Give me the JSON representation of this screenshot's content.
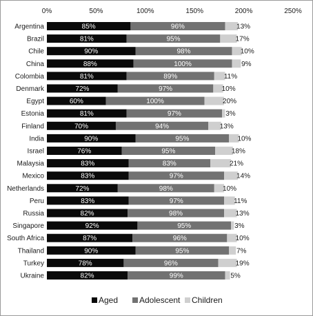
{
  "chart_data": {
    "type": "bar",
    "orientation": "horizontal",
    "stacked": true,
    "categories": [
      "Argentina",
      "Brazil",
      "Chile",
      "China",
      "Colombia",
      "Denmark",
      "Egypt",
      "Estonia",
      "Finland",
      "India",
      "Israel",
      "Malaysia",
      "Mexico",
      "Netherlands",
      "Peru",
      "Russia",
      "Singapore",
      "South Africa",
      "Thailand",
      "Turkey",
      "Ukraine"
    ],
    "series": [
      {
        "name": "Aged",
        "color": "#0a0a0a",
        "values": [
          85,
          81,
          90,
          88,
          81,
          72,
          60,
          81,
          70,
          90,
          76,
          83,
          83,
          72,
          83,
          82,
          92,
          87,
          90,
          78,
          82
        ]
      },
      {
        "name": "Adolescent",
        "color": "#727272",
        "values": [
          96,
          95,
          98,
          100,
          89,
          97,
          100,
          97,
          94,
          95,
          95,
          83,
          97,
          98,
          97,
          98,
          95,
          96,
          95,
          96,
          99
        ]
      },
      {
        "name": "Children",
        "color": "#cfcfcf",
        "values": [
          13,
          17,
          10,
          9,
          11,
          10,
          20,
          3,
          13,
          10,
          18,
          21,
          14,
          10,
          11,
          13,
          3,
          10,
          7,
          19,
          5
        ]
      }
    ],
    "value_suffix": "%",
    "xlim": [
      0,
      250
    ],
    "xticks": [
      "0%",
      "50%",
      "100%",
      "150%",
      "200%",
      "250%"
    ],
    "xaxis_position": "top",
    "grid": false,
    "legend_position": "bottom"
  }
}
